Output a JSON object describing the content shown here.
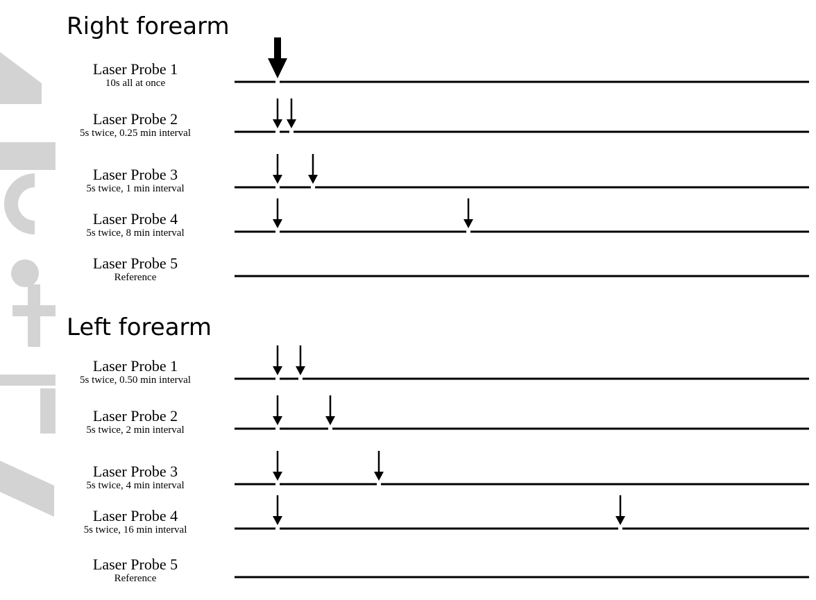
{
  "watermark": {
    "text": "Article"
  },
  "sections": [
    {
      "title": "Right forearm",
      "probes": [
        {
          "name": "Laser Probe 1",
          "desc": "10s all at once",
          "arrows": [
            0
          ],
          "big": true
        },
        {
          "name": "Laser Probe 2",
          "desc": "5s twice, 0.25 min interval",
          "arrows": [
            0,
            0.25
          ],
          "big": false
        },
        {
          "name": "Laser Probe 3",
          "desc": "5s twice, 1 min interval",
          "arrows": [
            0,
            1
          ],
          "big": false
        },
        {
          "name": "Laser Probe 4",
          "desc": "5s twice, 8 min interval",
          "arrows": [
            0,
            8
          ],
          "big": false
        },
        {
          "name": "Laser Probe 5",
          "desc": "Reference",
          "arrows": [],
          "big": false
        }
      ]
    },
    {
      "title": "Left forearm",
      "probes": [
        {
          "name": "Laser Probe 1",
          "desc": "5s twice, 0.50 min interval",
          "arrows": [
            0,
            0.5
          ],
          "big": false
        },
        {
          "name": "Laser Probe 2",
          "desc": "5s twice, 2 min interval",
          "arrows": [
            0,
            2
          ],
          "big": false
        },
        {
          "name": "Laser Probe 3",
          "desc": "5s twice, 4 min interval",
          "arrows": [
            0,
            4
          ],
          "big": false
        },
        {
          "name": "Laser Probe 4",
          "desc": "5s twice, 16 min interval",
          "arrows": [
            0,
            16
          ],
          "big": false
        },
        {
          "name": "Laser Probe 5",
          "desc": "Reference",
          "arrows": [],
          "big": false
        }
      ]
    }
  ]
}
